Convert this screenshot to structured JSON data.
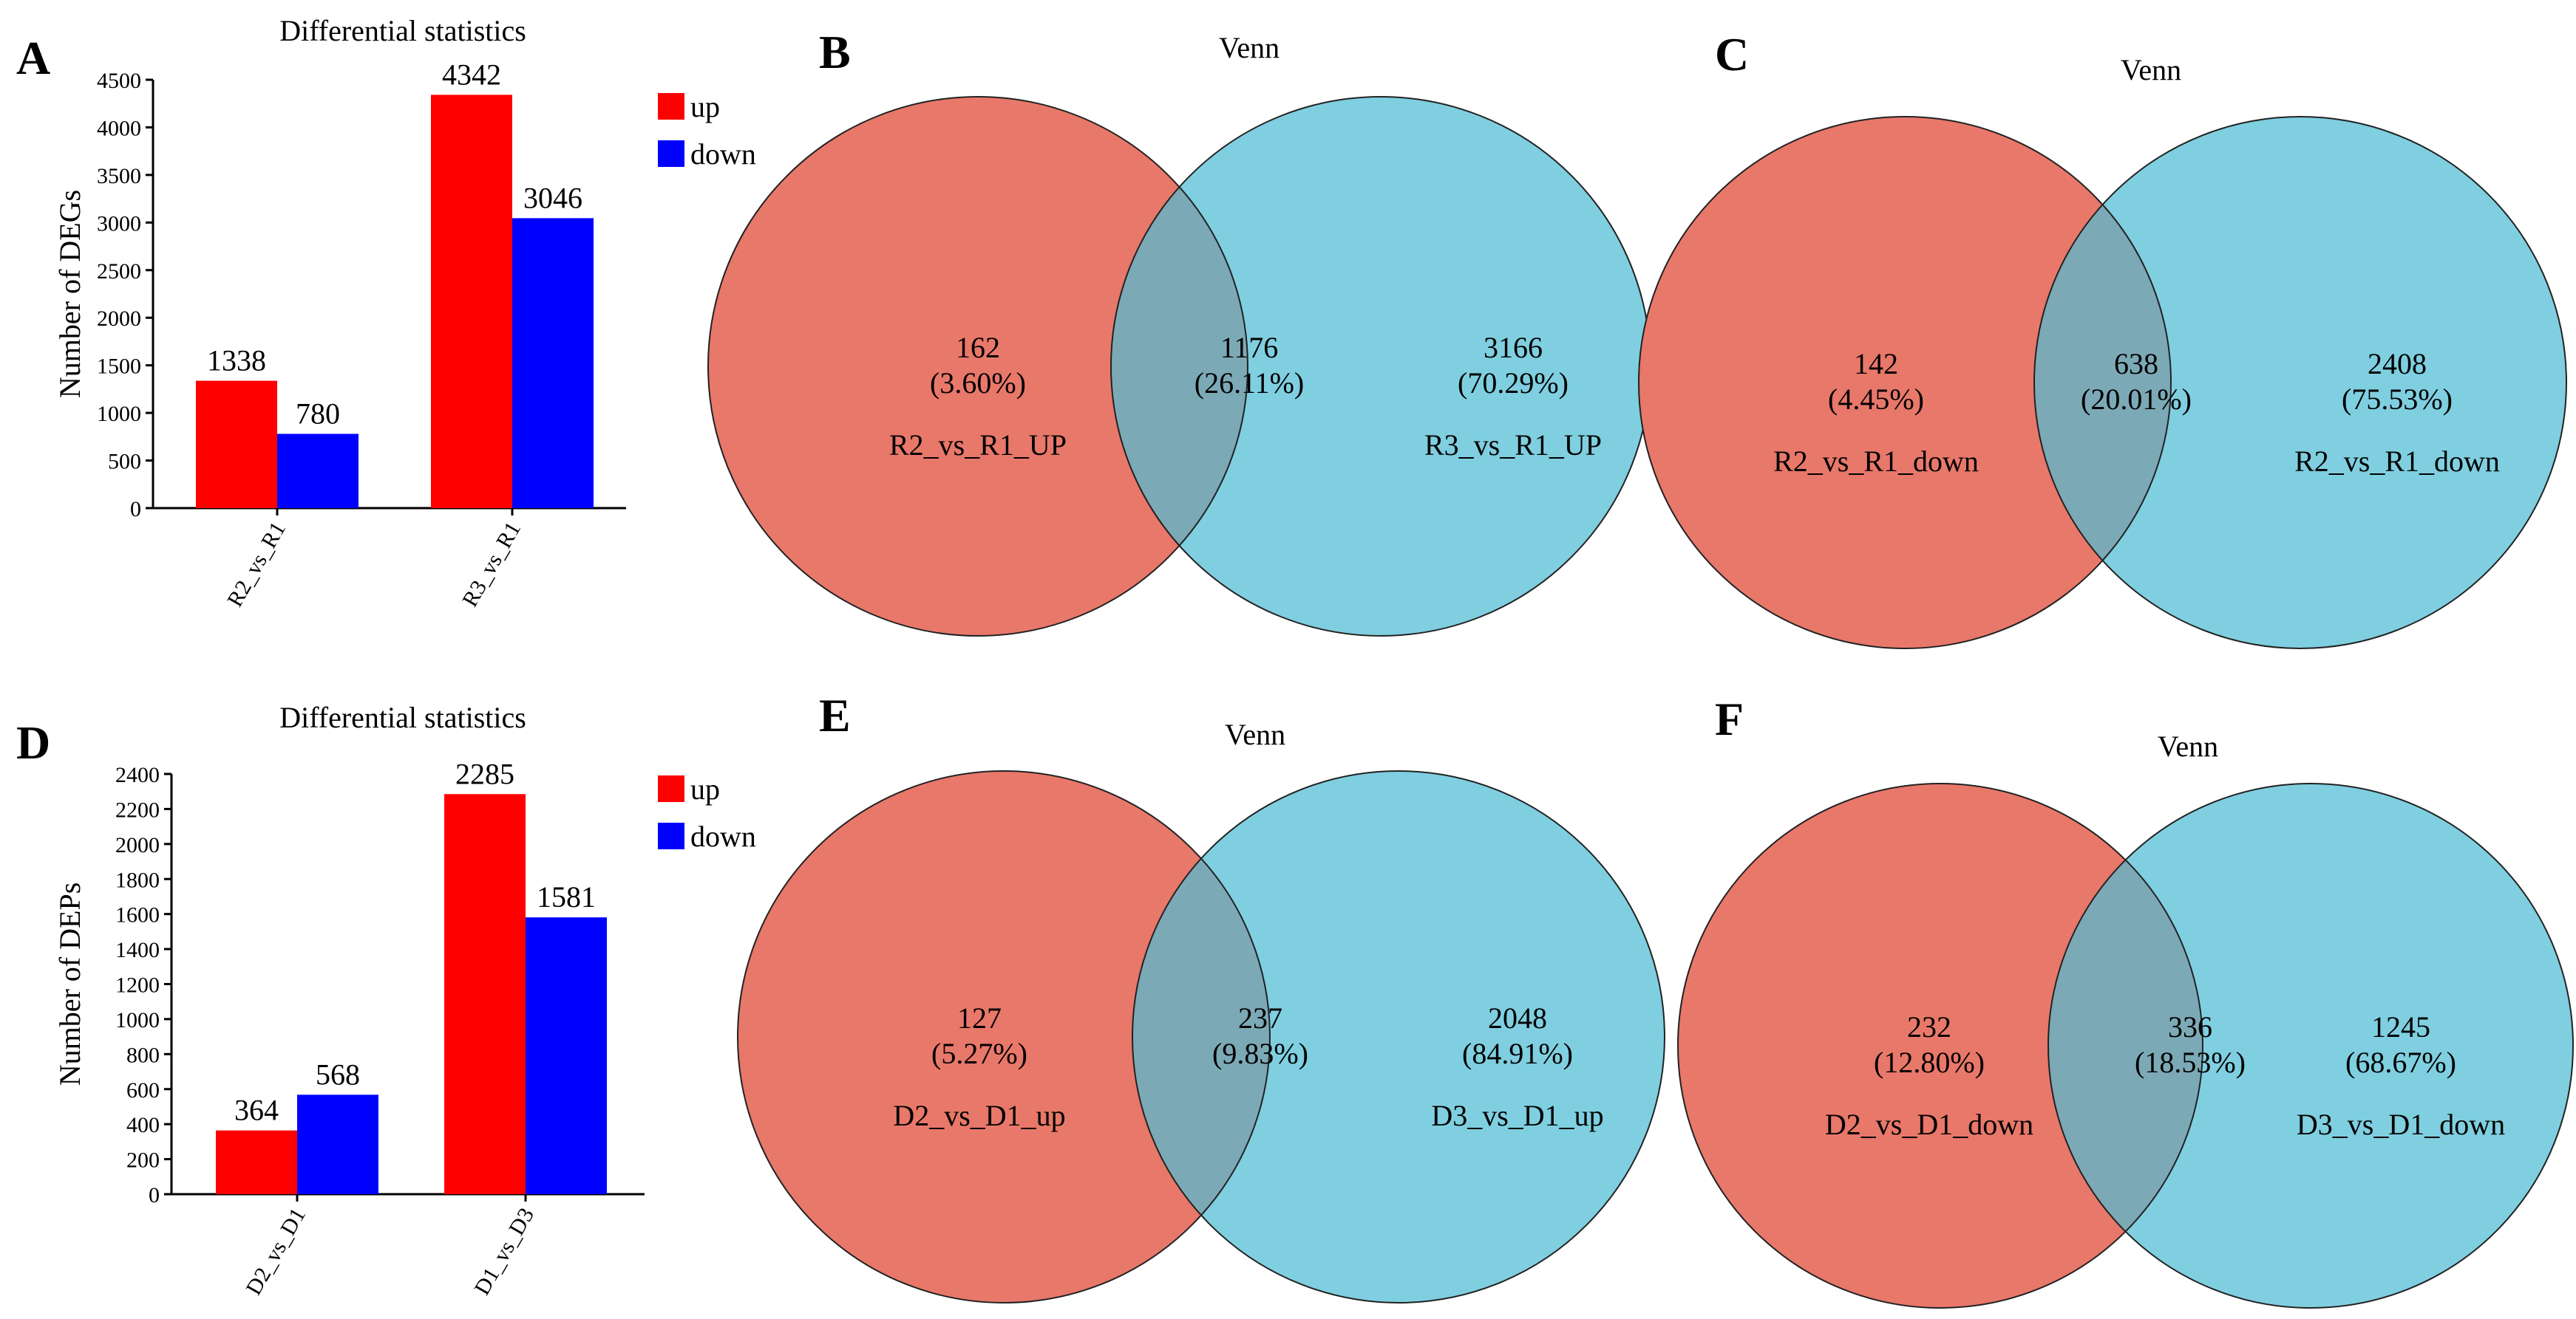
{
  "colors": {
    "up": "#ff0000",
    "down": "#0000ff",
    "venn_left": "#e8786a",
    "venn_right": "#7fcfe0",
    "venn_overlap": "#7ca9b6"
  },
  "chart_data": [
    {
      "panel": "A",
      "type": "bar",
      "title": "Differential statistics",
      "ylabel": "Number of DEGs",
      "xlabel": "",
      "categories": [
        "R2_vs_R1",
        "R3_vs_R1"
      ],
      "series": [
        {
          "name": "up",
          "values": [
            1338,
            4342
          ]
        },
        {
          "name": "down",
          "values": [
            780,
            3046
          ]
        }
      ],
      "ylim": [
        0,
        4500
      ],
      "yticks": [
        0,
        500,
        1000,
        1500,
        2000,
        2500,
        3000,
        3500,
        4000,
        4500
      ],
      "legend": [
        "up",
        "down"
      ]
    },
    {
      "panel": "D",
      "type": "bar",
      "title": "Differential statistics",
      "ylabel": "Number of DEPs",
      "xlabel": "",
      "categories": [
        "D2_vs_D1",
        "D1_vs_D3"
      ],
      "series": [
        {
          "name": "up",
          "values": [
            364,
            2285
          ]
        },
        {
          "name": "down",
          "values": [
            568,
            1581
          ]
        }
      ],
      "ylim": [
        0,
        2400
      ],
      "yticks": [
        0,
        200,
        400,
        600,
        800,
        1000,
        1200,
        1400,
        1600,
        1800,
        2000,
        2200,
        2400
      ],
      "legend": [
        "up",
        "down"
      ]
    },
    {
      "panel": "B",
      "type": "venn",
      "title": "Venn",
      "left": {
        "count": "162",
        "pct": "(3.60%)",
        "label": "R2_vs_R1_UP"
      },
      "overlap": {
        "count": "1176",
        "pct": "(26.11%)"
      },
      "right": {
        "count": "3166",
        "pct": "(70.29%)",
        "label": "R3_vs_R1_UP"
      }
    },
    {
      "panel": "C",
      "type": "venn",
      "title": "Venn",
      "left": {
        "count": "142",
        "pct": "(4.45%)",
        "label": "R2_vs_R1_down"
      },
      "overlap": {
        "count": "638",
        "pct": "(20.01%)"
      },
      "right": {
        "count": "2408",
        "pct": "(75.53%)",
        "label": "R2_vs_R1_down"
      }
    },
    {
      "panel": "E",
      "type": "venn",
      "title": "Venn",
      "left": {
        "count": "127",
        "pct": "(5.27%)",
        "label": "D2_vs_D1_up"
      },
      "overlap": {
        "count": "237",
        "pct": "(9.83%)"
      },
      "right": {
        "count": "2048",
        "pct": "(84.91%)",
        "label": "D3_vs_D1_up"
      }
    },
    {
      "panel": "F",
      "type": "venn",
      "title": "Venn",
      "left": {
        "count": "232",
        "pct": "(12.80%)",
        "label": "D2_vs_D1_down"
      },
      "overlap": {
        "count": "336",
        "pct": "(18.53%)"
      },
      "right": {
        "count": "1245",
        "pct": "(68.67%)",
        "label": "D3_vs_D1_down"
      }
    }
  ]
}
